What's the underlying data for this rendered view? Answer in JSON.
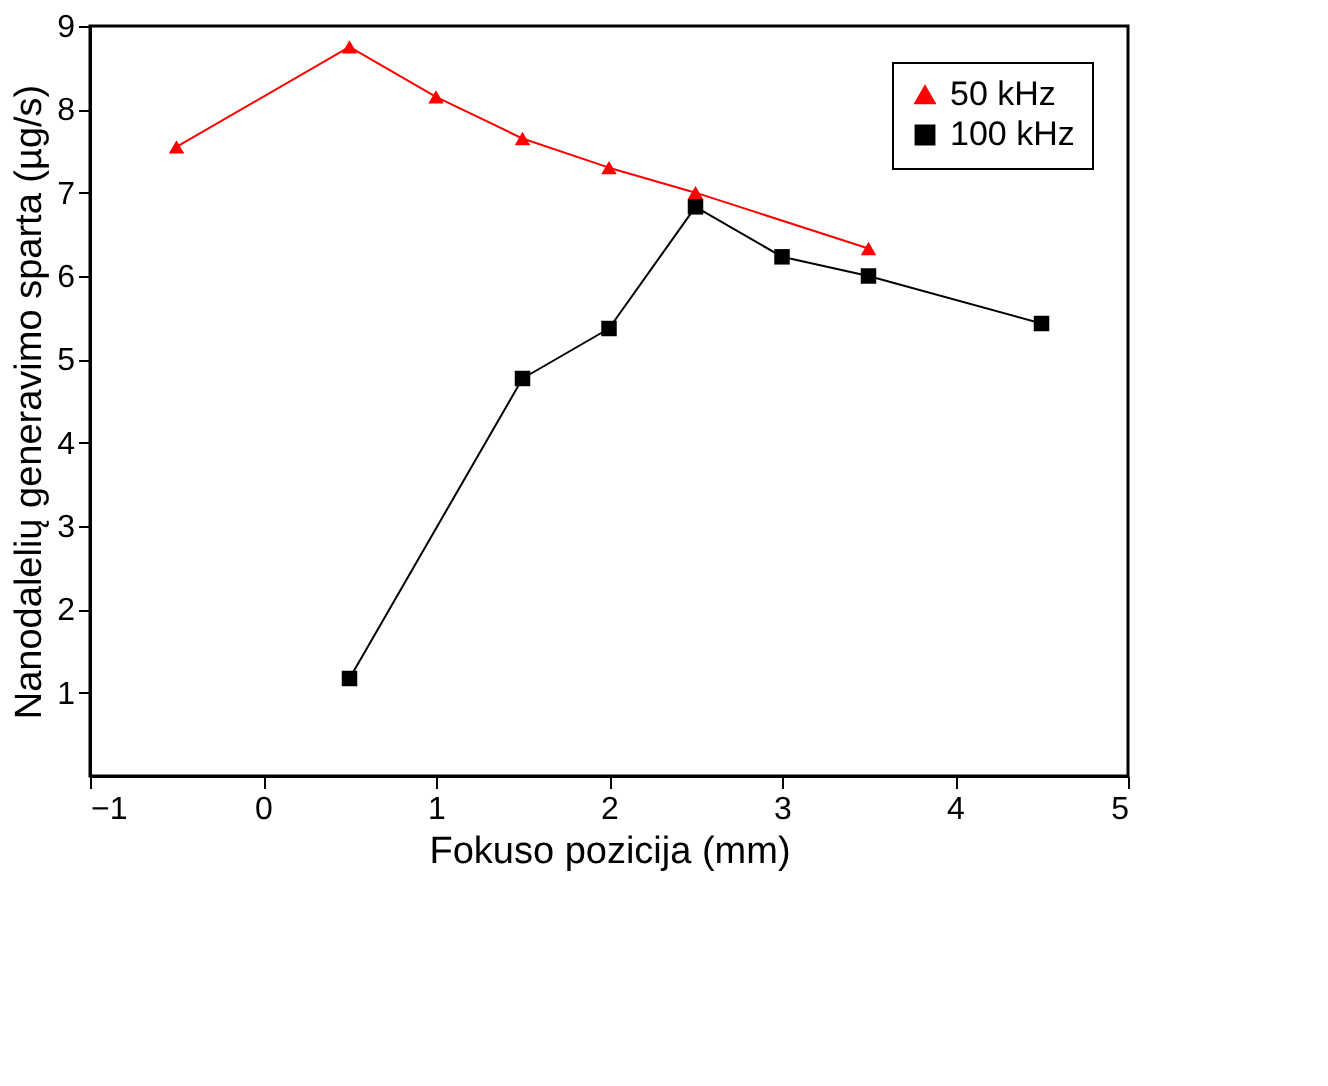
{
  "chart_data": {
    "type": "line",
    "xlabel": "Fokuso pozicija (mm)",
    "ylabel": "Nanodalelių generavimo sparta (µg/s)",
    "xlim": [
      -1,
      5
    ],
    "xticks": [
      -1,
      0,
      1,
      2,
      3,
      4,
      5
    ],
    "ylim": [
      0,
      9
    ],
    "yticks": [
      1,
      2,
      3,
      4,
      5,
      6,
      7,
      8,
      9
    ],
    "grid": false,
    "legend": "top right",
    "line_style": "solid",
    "series": [
      {
        "name": "50 kHz",
        "color": "#ff0000",
        "marker": "triangle",
        "x": [
          -0.5,
          0.5,
          1,
          1.5,
          2,
          2.5,
          3.5
        ],
        "values": [
          7.55,
          8.75,
          8.15,
          7.65,
          7.3,
          7.0,
          6.33
        ]
      },
      {
        "name": "100 kHz",
        "color": "#000000",
        "marker": "square",
        "x": [
          0.5,
          1.5,
          2,
          2.5,
          3,
          3.5,
          4.5
        ],
        "values": [
          1.17,
          4.77,
          5.37,
          6.83,
          6.23,
          6.0,
          5.43
        ]
      }
    ]
  }
}
